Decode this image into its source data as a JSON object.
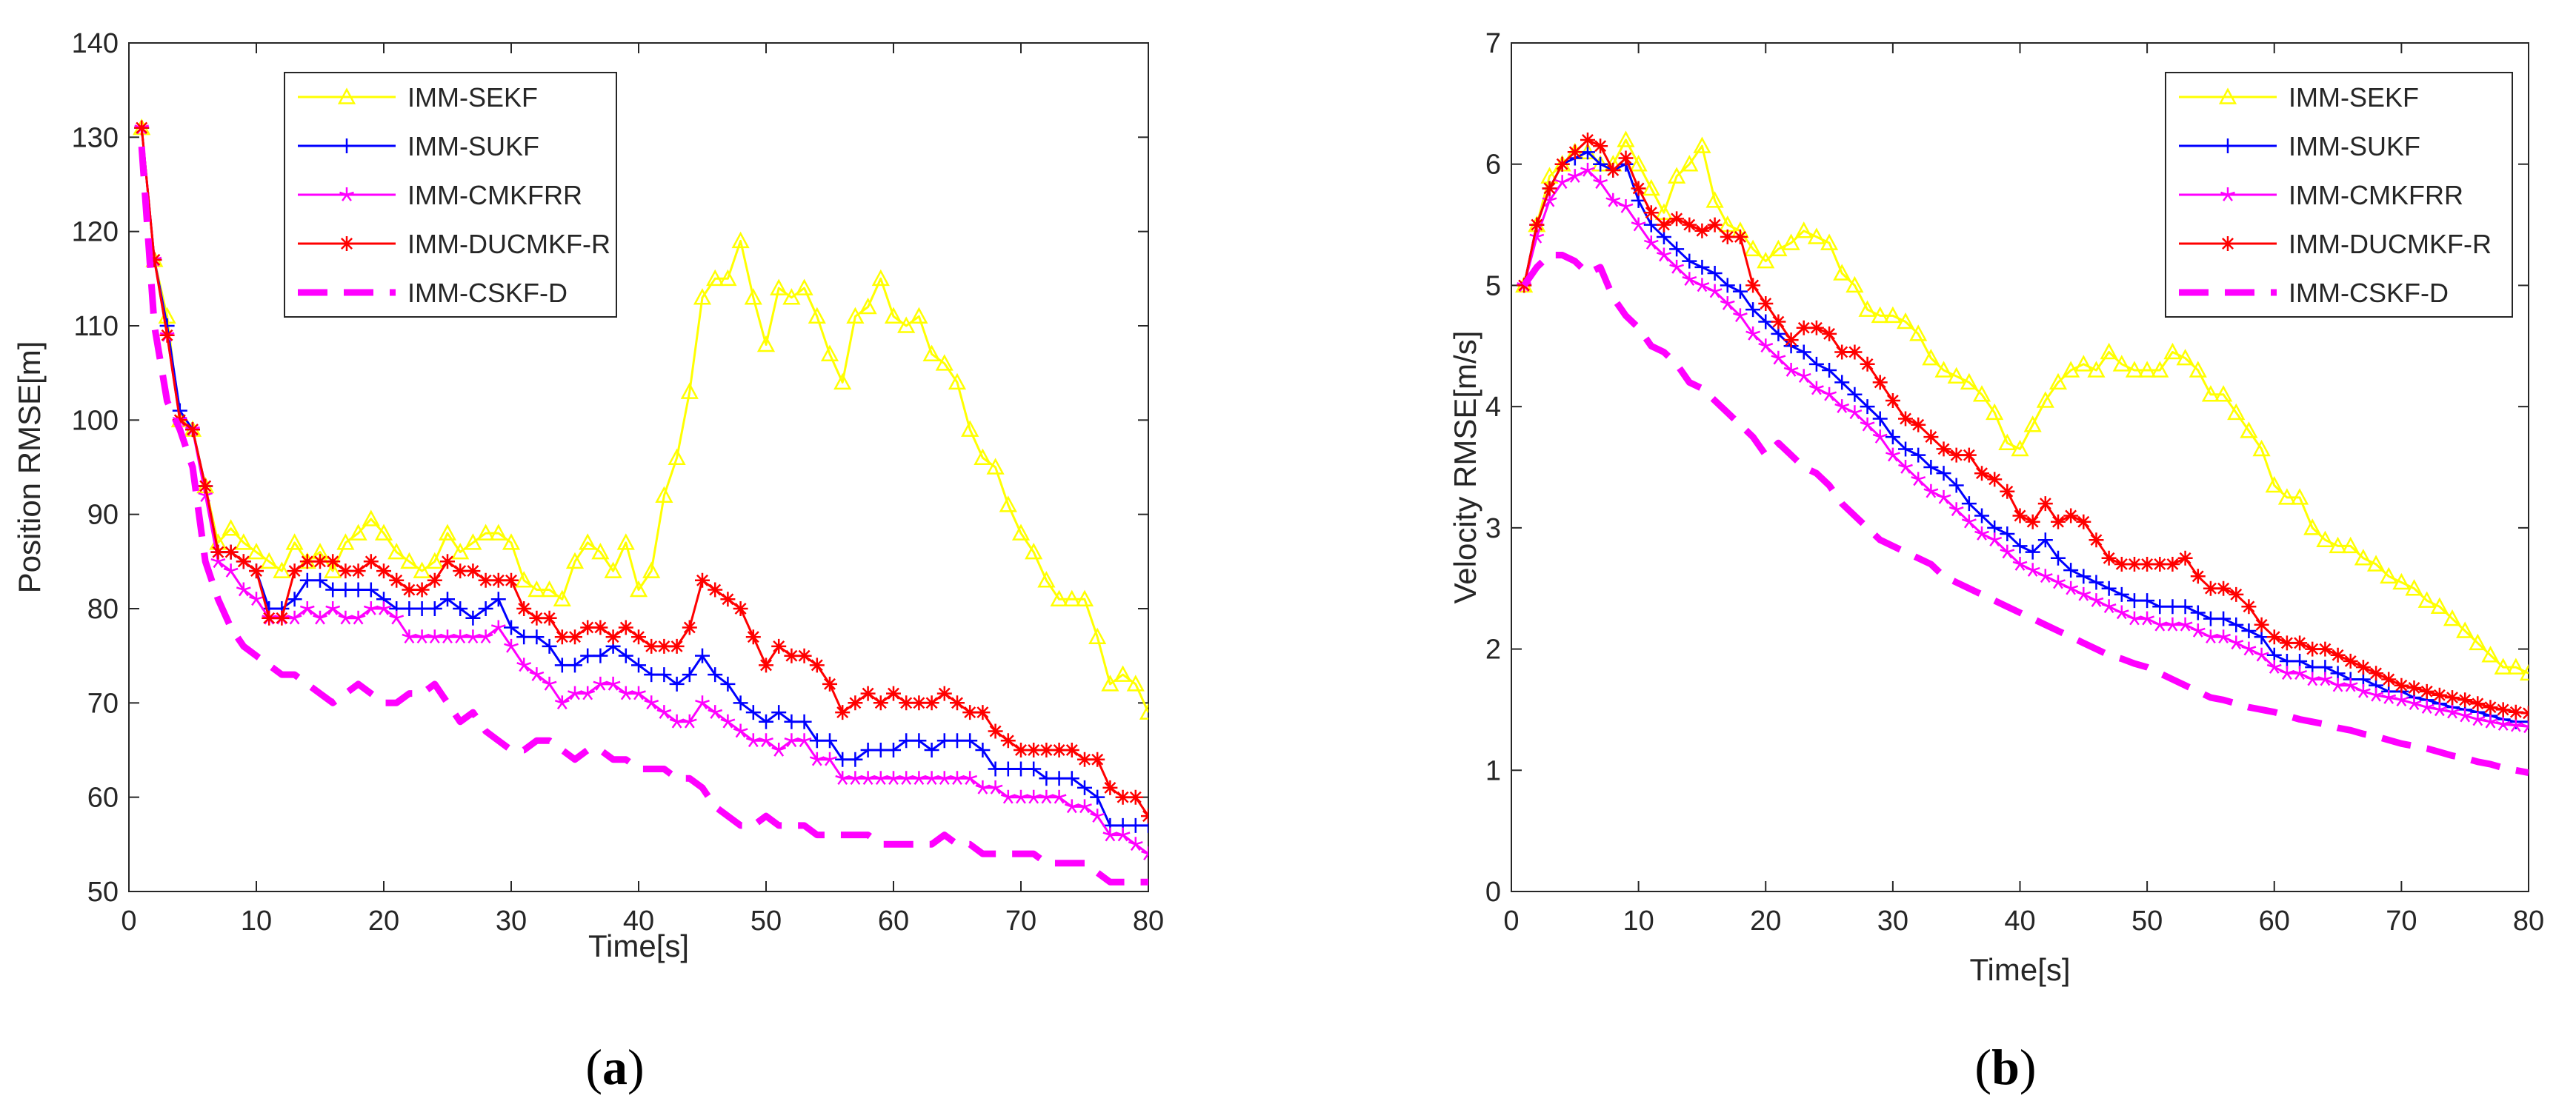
{
  "chart_data": [
    {
      "type": "line",
      "panel_label": "(a)",
      "xlabel": "Time[s]",
      "ylabel": "Position RMSE[m]",
      "xlim": [
        0,
        80
      ],
      "ylim": [
        50,
        140
      ],
      "xticks": [
        0,
        10,
        20,
        30,
        40,
        50,
        60,
        70,
        80
      ],
      "yticks": [
        50,
        60,
        70,
        80,
        90,
        100,
        110,
        120,
        130,
        140
      ],
      "x": [
        1,
        2,
        3,
        4,
        5,
        6,
        7,
        8,
        9,
        10,
        11,
        12,
        13,
        14,
        15,
        16,
        17,
        18,
        19,
        20,
        21,
        22,
        23,
        24,
        25,
        26,
        27,
        28,
        29,
        30,
        31,
        32,
        33,
        34,
        35,
        36,
        37,
        38,
        39,
        40,
        41,
        42,
        43,
        44,
        45,
        46,
        47,
        48,
        49,
        50,
        51,
        52,
        53,
        54,
        55,
        56,
        57,
        58,
        59,
        60,
        61,
        62,
        63,
        64,
        65,
        66,
        67,
        68,
        69,
        70,
        71,
        72,
        73,
        74,
        75,
        76,
        77,
        78,
        79,
        80
      ],
      "series": [
        {
          "name": "IMM-SEKF",
          "color": "#ffff00",
          "dash": "solid",
          "marker": "triangle",
          "values": [
            131,
            117,
            111,
            100,
            99,
            93,
            87,
            88.5,
            87,
            86,
            85,
            84,
            87,
            85,
            86,
            84,
            87,
            88,
            89.5,
            88,
            86,
            85,
            84,
            85,
            88,
            86,
            87,
            88,
            88,
            87,
            83,
            82,
            82,
            81,
            85,
            87,
            86,
            84,
            87,
            82,
            84,
            92,
            96,
            103,
            113,
            115,
            115,
            119,
            113,
            108,
            114,
            113,
            114,
            111,
            107,
            104,
            111,
            112,
            115,
            111,
            110,
            111,
            107,
            106,
            104,
            99,
            96,
            95,
            91,
            88,
            86,
            83,
            81,
            81,
            81,
            77,
            72,
            73,
            72,
            69
          ]
        },
        {
          "name": "IMM-SUKF",
          "color": "#0000ff",
          "dash": "solid",
          "marker": "plus",
          "values": [
            131,
            117,
            110,
            101,
            99,
            93,
            86,
            86,
            85,
            84,
            80,
            80,
            81,
            83,
            83,
            82,
            82,
            82,
            82,
            81,
            80,
            80,
            80,
            80,
            81,
            80,
            79,
            80,
            81,
            78,
            77,
            77,
            76,
            74,
            74,
            75,
            75,
            76,
            75,
            74,
            73,
            73,
            72,
            73,
            75,
            73,
            72,
            70,
            69,
            68,
            69,
            68,
            68,
            66,
            66,
            64,
            64,
            65,
            65,
            65,
            66,
            66,
            65,
            66,
            66,
            66,
            65,
            63,
            63,
            63,
            63,
            62,
            62,
            62,
            61,
            60,
            57,
            57,
            57,
            57
          ]
        },
        {
          "name": "IMM-CMKFRR",
          "color": "#ff00ff",
          "dash": "solid",
          "marker": "star",
          "values": [
            131,
            117,
            109,
            100,
            99,
            92,
            85,
            84,
            82,
            81,
            79,
            79,
            79,
            80,
            79,
            80,
            79,
            79,
            80,
            80,
            79,
            77,
            77,
            77,
            77,
            77,
            77,
            77,
            78,
            76,
            74,
            73,
            72,
            70,
            71,
            71,
            72,
            72,
            71,
            71,
            70,
            69,
            68,
            68,
            70,
            69,
            68,
            67,
            66,
            66,
            65,
            66,
            66,
            64,
            64,
            62,
            62,
            62,
            62,
            62,
            62,
            62,
            62,
            62,
            62,
            62,
            61,
            61,
            60,
            60,
            60,
            60,
            60,
            59,
            59,
            58,
            56,
            56,
            55,
            54
          ]
        },
        {
          "name": "IMM-DUCMKF-R",
          "color": "#ff0000",
          "dash": "solid",
          "marker": "asterisk",
          "values": [
            131,
            117,
            109,
            100,
            99,
            93,
            86,
            86,
            85,
            84,
            79,
            79,
            84,
            85,
            85,
            85,
            84,
            84,
            85,
            84,
            83,
            82,
            82,
            83,
            85,
            84,
            84,
            83,
            83,
            83,
            80,
            79,
            79,
            77,
            77,
            78,
            78,
            77,
            78,
            77,
            76,
            76,
            76,
            78,
            83,
            82,
            81,
            80,
            77,
            74,
            76,
            75,
            75,
            74,
            72,
            69,
            70,
            71,
            70,
            71,
            70,
            70,
            70,
            71,
            70,
            69,
            69,
            67,
            66,
            65,
            65,
            65,
            65,
            65,
            64,
            64,
            61,
            60,
            60,
            58
          ]
        },
        {
          "name": "IMM-CSKF-D",
          "color": "#ff00ff",
          "dash": "dashed",
          "marker": "none",
          "values": [
            129,
            110,
            102,
            99,
            95,
            85,
            81,
            78,
            76,
            75,
            74,
            73,
            73,
            72,
            71,
            70,
            71,
            72,
            71,
            70,
            70,
            71,
            71,
            72,
            70,
            68,
            69,
            67,
            66,
            65,
            65,
            66,
            66,
            65,
            64,
            65,
            65,
            64,
            64,
            63,
            63,
            63,
            62,
            62,
            61,
            59,
            58,
            57,
            57,
            58,
            57,
            57,
            57,
            56,
            56,
            56,
            56,
            56,
            55,
            55,
            55,
            55,
            55,
            56,
            55,
            55,
            54,
            54,
            54,
            54,
            54,
            53,
            53,
            53,
            53,
            52,
            51,
            51,
            51,
            51
          ]
        }
      ]
    },
    {
      "type": "line",
      "panel_label": "(b)",
      "xlabel": "Time[s]",
      "ylabel": "Velocity RMSE[m/s]",
      "xlim": [
        0,
        80
      ],
      "ylim": [
        0,
        7
      ],
      "xticks": [
        0,
        10,
        20,
        30,
        40,
        50,
        60,
        70,
        80
      ],
      "yticks": [
        0,
        1,
        2,
        3,
        4,
        5,
        6,
        7
      ],
      "x": [
        1,
        2,
        3,
        4,
        5,
        6,
        7,
        8,
        9,
        10,
        11,
        12,
        13,
        14,
        15,
        16,
        17,
        18,
        19,
        20,
        21,
        22,
        23,
        24,
        25,
        26,
        27,
        28,
        29,
        30,
        31,
        32,
        33,
        34,
        35,
        36,
        37,
        38,
        39,
        40,
        41,
        42,
        43,
        44,
        45,
        46,
        47,
        48,
        49,
        50,
        51,
        52,
        53,
        54,
        55,
        56,
        57,
        58,
        59,
        60,
        61,
        62,
        63,
        64,
        65,
        66,
        67,
        68,
        69,
        70,
        71,
        72,
        73,
        74,
        75,
        76,
        77,
        78,
        79,
        80
      ],
      "series": [
        {
          "name": "IMM-SEKF",
          "color": "#ffff00",
          "dash": "solid",
          "marker": "triangle",
          "values": [
            5.0,
            5.5,
            5.9,
            6.0,
            6.1,
            6.1,
            6.0,
            6.0,
            6.2,
            6.0,
            5.8,
            5.6,
            5.9,
            6.0,
            6.15,
            5.7,
            5.5,
            5.45,
            5.3,
            5.2,
            5.3,
            5.35,
            5.45,
            5.4,
            5.35,
            5.1,
            5.0,
            4.8,
            4.75,
            4.75,
            4.7,
            4.6,
            4.4,
            4.3,
            4.25,
            4.2,
            4.1,
            3.95,
            3.7,
            3.65,
            3.85,
            4.05,
            4.2,
            4.3,
            4.35,
            4.3,
            4.45,
            4.35,
            4.3,
            4.3,
            4.3,
            4.45,
            4.4,
            4.3,
            4.1,
            4.1,
            3.95,
            3.8,
            3.65,
            3.35,
            3.25,
            3.25,
            3.0,
            2.9,
            2.85,
            2.85,
            2.75,
            2.7,
            2.6,
            2.55,
            2.5,
            2.4,
            2.35,
            2.25,
            2.15,
            2.05,
            1.95,
            1.85,
            1.85,
            1.8
          ]
        },
        {
          "name": "IMM-SUKF",
          "color": "#0000ff",
          "dash": "solid",
          "marker": "plus",
          "values": [
            5.0,
            5.5,
            5.8,
            6.0,
            6.05,
            6.1,
            6.0,
            5.95,
            6.0,
            5.7,
            5.5,
            5.4,
            5.3,
            5.2,
            5.15,
            5.1,
            5.0,
            4.95,
            4.8,
            4.7,
            4.6,
            4.5,
            4.45,
            4.35,
            4.3,
            4.2,
            4.1,
            4.0,
            3.9,
            3.75,
            3.65,
            3.6,
            3.5,
            3.45,
            3.35,
            3.2,
            3.1,
            3.0,
            2.95,
            2.85,
            2.8,
            2.9,
            2.75,
            2.65,
            2.6,
            2.55,
            2.5,
            2.45,
            2.4,
            2.4,
            2.35,
            2.35,
            2.35,
            2.3,
            2.25,
            2.25,
            2.2,
            2.15,
            2.1,
            1.95,
            1.9,
            1.9,
            1.85,
            1.85,
            1.8,
            1.75,
            1.75,
            1.7,
            1.65,
            1.65,
            1.6,
            1.58,
            1.55,
            1.52,
            1.5,
            1.48,
            1.45,
            1.42,
            1.4,
            1.4
          ]
        },
        {
          "name": "IMM-CMKFRR",
          "color": "#ff00ff",
          "dash": "solid",
          "marker": "star",
          "values": [
            5.0,
            5.4,
            5.7,
            5.85,
            5.9,
            5.95,
            5.85,
            5.7,
            5.65,
            5.5,
            5.35,
            5.25,
            5.15,
            5.05,
            5.0,
            4.95,
            4.85,
            4.75,
            4.6,
            4.5,
            4.4,
            4.3,
            4.25,
            4.15,
            4.1,
            4.0,
            3.95,
            3.85,
            3.75,
            3.6,
            3.5,
            3.4,
            3.3,
            3.25,
            3.15,
            3.05,
            2.95,
            2.9,
            2.8,
            2.7,
            2.65,
            2.6,
            2.55,
            2.5,
            2.45,
            2.4,
            2.35,
            2.3,
            2.25,
            2.25,
            2.2,
            2.2,
            2.2,
            2.15,
            2.1,
            2.1,
            2.05,
            2.0,
            1.95,
            1.85,
            1.8,
            1.8,
            1.75,
            1.75,
            1.7,
            1.7,
            1.65,
            1.62,
            1.6,
            1.58,
            1.55,
            1.52,
            1.5,
            1.48,
            1.45,
            1.42,
            1.4,
            1.38,
            1.37,
            1.36
          ]
        },
        {
          "name": "IMM-DUCMKF-R",
          "color": "#ff0000",
          "dash": "solid",
          "marker": "asterisk",
          "values": [
            5.0,
            5.5,
            5.8,
            6.0,
            6.1,
            6.2,
            6.15,
            5.95,
            6.05,
            5.8,
            5.6,
            5.5,
            5.55,
            5.5,
            5.45,
            5.5,
            5.4,
            5.4,
            5.0,
            4.85,
            4.7,
            4.55,
            4.65,
            4.65,
            4.6,
            4.45,
            4.45,
            4.35,
            4.2,
            4.05,
            3.9,
            3.85,
            3.75,
            3.65,
            3.6,
            3.6,
            3.45,
            3.4,
            3.3,
            3.1,
            3.05,
            3.2,
            3.05,
            3.1,
            3.05,
            2.9,
            2.75,
            2.7,
            2.7,
            2.7,
            2.7,
            2.7,
            2.75,
            2.6,
            2.5,
            2.5,
            2.45,
            2.35,
            2.2,
            2.1,
            2.05,
            2.05,
            2.0,
            2.0,
            1.95,
            1.9,
            1.85,
            1.8,
            1.75,
            1.7,
            1.68,
            1.65,
            1.62,
            1.6,
            1.58,
            1.55,
            1.52,
            1.5,
            1.48,
            1.47
          ]
        },
        {
          "name": "IMM-CSKF-D",
          "color": "#ff00ff",
          "dash": "dashed",
          "marker": "none",
          "values": [
            5.0,
            5.15,
            5.25,
            5.25,
            5.2,
            5.1,
            5.15,
            4.9,
            4.75,
            4.65,
            4.5,
            4.45,
            4.35,
            4.2,
            4.15,
            4.05,
            3.95,
            3.85,
            3.75,
            3.6,
            3.7,
            3.6,
            3.5,
            3.45,
            3.35,
            3.2,
            3.1,
            3.0,
            2.9,
            2.85,
            2.8,
            2.75,
            2.7,
            2.6,
            2.55,
            2.5,
            2.45,
            2.4,
            2.35,
            2.3,
            2.25,
            2.2,
            2.15,
            2.1,
            2.05,
            2.0,
            1.95,
            1.92,
            1.88,
            1.85,
            1.8,
            1.75,
            1.7,
            1.65,
            1.6,
            1.58,
            1.55,
            1.52,
            1.5,
            1.48,
            1.45,
            1.42,
            1.4,
            1.38,
            1.35,
            1.33,
            1.3,
            1.28,
            1.25,
            1.22,
            1.2,
            1.18,
            1.15,
            1.12,
            1.1,
            1.07,
            1.05,
            1.02,
            1.0,
            0.98
          ]
        }
      ]
    }
  ]
}
